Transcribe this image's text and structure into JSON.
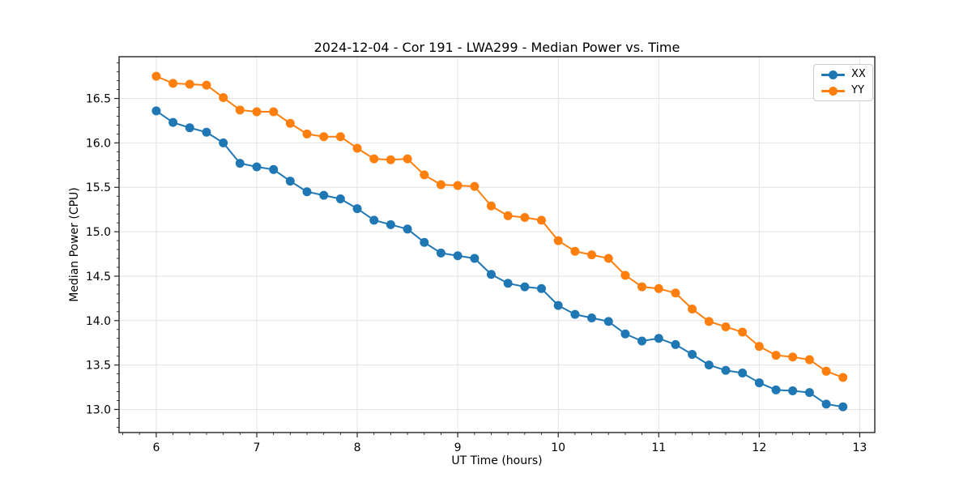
{
  "chart_data": {
    "type": "line",
    "title": "2024-12-04 - Cor 191 - LWA299 - Median Power vs. Time",
    "xlabel": "UT Time (hours)",
    "ylabel": "Median Power (CPU)",
    "xlim": [
      5.63,
      13.15
    ],
    "ylim": [
      12.74,
      16.97
    ],
    "x_tick_values": [
      6,
      7,
      8,
      9,
      10,
      11,
      12,
      13
    ],
    "x_tick_labels": [
      "6",
      "7",
      "8",
      "9",
      "10",
      "11",
      "12",
      "13"
    ],
    "y_tick_values": [
      13.0,
      13.5,
      14.0,
      14.5,
      15.0,
      15.5,
      16.0,
      16.5
    ],
    "y_tick_labels": [
      "13.0",
      "13.5",
      "14.0",
      "14.5",
      "15.0",
      "15.5",
      "16.0",
      "16.5"
    ],
    "x_minor_divisions_per_major": 6,
    "y_minor_divisions_per_major": 5,
    "grid": "major",
    "grid_color": "#e2e2e2",
    "spine_color": "#262626",
    "legend_position": "upper right",
    "marker": "circle",
    "marker_radius": 5.5,
    "line_width": 2,
    "x": [
      6.0,
      6.167,
      6.333,
      6.5,
      6.667,
      6.833,
      7.0,
      7.167,
      7.333,
      7.5,
      7.667,
      7.833,
      8.0,
      8.167,
      8.333,
      8.5,
      8.667,
      8.833,
      9.0,
      9.167,
      9.333,
      9.5,
      9.667,
      9.833,
      10.0,
      10.167,
      10.333,
      10.5,
      10.667,
      10.833,
      11.0,
      11.167,
      11.333,
      11.5,
      11.667,
      11.833,
      12.0,
      12.167,
      12.333,
      12.5,
      12.667,
      12.833
    ],
    "series": [
      {
        "name": "XX",
        "color": "#1f77b4",
        "values": [
          16.36,
          16.23,
          16.17,
          16.12,
          16.0,
          15.77,
          15.73,
          15.7,
          15.57,
          15.45,
          15.41,
          15.37,
          15.26,
          15.13,
          15.08,
          15.03,
          14.88,
          14.76,
          14.73,
          14.7,
          14.52,
          14.42,
          14.38,
          14.36,
          14.17,
          14.07,
          14.03,
          13.99,
          13.85,
          13.77,
          13.8,
          13.73,
          13.62,
          13.5,
          13.44,
          13.41,
          13.3,
          13.22,
          13.21,
          13.19,
          13.06,
          13.03
        ]
      },
      {
        "name": "YY",
        "color": "#ff7f0e",
        "values": [
          16.75,
          16.67,
          16.66,
          16.65,
          16.51,
          16.37,
          16.35,
          16.35,
          16.22,
          16.1,
          16.07,
          16.07,
          15.94,
          15.82,
          15.81,
          15.82,
          15.64,
          15.53,
          15.52,
          15.51,
          15.29,
          15.18,
          15.16,
          15.13,
          14.9,
          14.78,
          14.74,
          14.7,
          14.51,
          14.38,
          14.36,
          14.31,
          14.13,
          13.99,
          13.93,
          13.87,
          13.71,
          13.61,
          13.59,
          13.56,
          13.43,
          13.36
        ]
      }
    ]
  }
}
